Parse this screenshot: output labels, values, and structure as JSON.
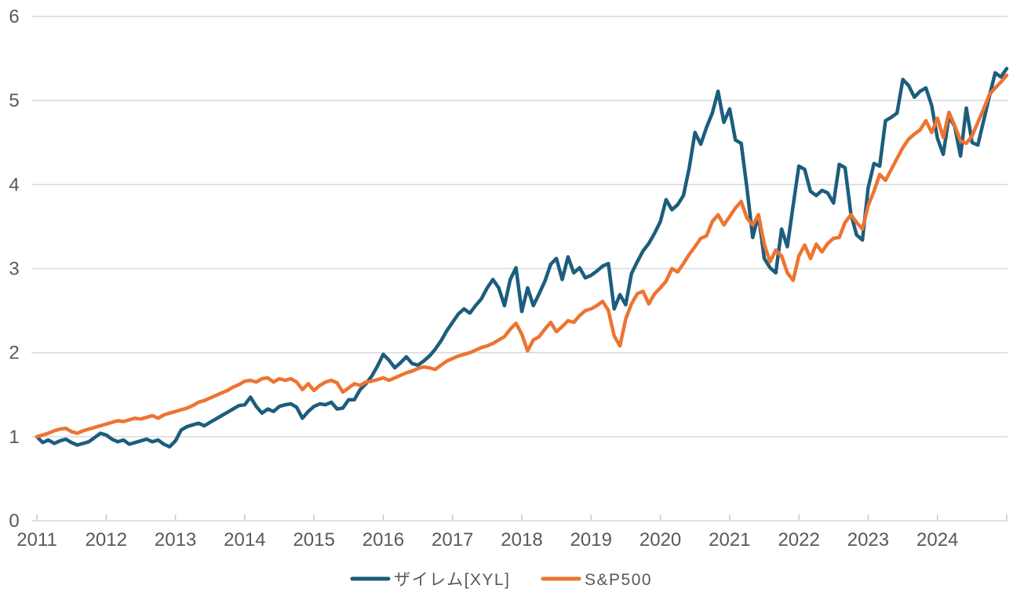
{
  "chart_data": {
    "type": "line",
    "title": "",
    "xlabel": "",
    "ylabel": "",
    "x_tick_labels": [
      "2011",
      "2012",
      "2013",
      "2014",
      "2015",
      "2016",
      "2017",
      "2018",
      "2019",
      "2020",
      "2021",
      "2022",
      "2023",
      "2024"
    ],
    "points_per_year": 12,
    "y_ticks": [
      0,
      1,
      2,
      3,
      4,
      5,
      6
    ],
    "ylim": [
      0,
      6
    ],
    "grid": "horizontal-only",
    "legend_position": "bottom-center",
    "background_color": "#ffffff",
    "gridline_color": "#d9d9d9",
    "tick_color": "#c9c9c9",
    "axis_label_color": "#595959",
    "series": [
      {
        "name": "ザイレム[XYL]",
        "color": "#1c5d7d",
        "values": [
          1.0,
          0.93,
          0.96,
          0.92,
          0.95,
          0.97,
          0.93,
          0.9,
          0.92,
          0.94,
          0.99,
          1.04,
          1.02,
          0.97,
          0.94,
          0.96,
          0.91,
          0.93,
          0.95,
          0.97,
          0.94,
          0.96,
          0.91,
          0.88,
          0.95,
          1.08,
          1.12,
          1.14,
          1.16,
          1.13,
          1.17,
          1.21,
          1.25,
          1.29,
          1.33,
          1.37,
          1.38,
          1.47,
          1.36,
          1.28,
          1.33,
          1.3,
          1.36,
          1.38,
          1.39,
          1.35,
          1.22,
          1.3,
          1.36,
          1.39,
          1.38,
          1.41,
          1.33,
          1.34,
          1.44,
          1.44,
          1.56,
          1.63,
          1.72,
          1.84,
          1.98,
          1.91,
          1.82,
          1.88,
          1.95,
          1.87,
          1.85,
          1.9,
          1.96,
          2.04,
          2.14,
          2.26,
          2.36,
          2.46,
          2.52,
          2.47,
          2.56,
          2.64,
          2.77,
          2.87,
          2.77,
          2.56,
          2.87,
          3.01,
          2.49,
          2.77,
          2.56,
          2.7,
          2.85,
          3.05,
          3.12,
          2.87,
          3.14,
          2.95,
          3.01,
          2.89,
          2.92,
          2.97,
          3.03,
          3.06,
          2.52,
          2.69,
          2.57,
          2.94,
          3.08,
          3.21,
          3.3,
          3.42,
          3.56,
          3.82,
          3.7,
          3.76,
          3.87,
          4.2,
          4.62,
          4.48,
          4.68,
          4.85,
          5.11,
          4.74,
          4.9,
          4.53,
          4.49,
          3.96,
          3.37,
          3.64,
          3.12,
          3.01,
          2.95,
          3.47,
          3.26,
          3.75,
          4.22,
          4.18,
          3.92,
          3.87,
          3.93,
          3.9,
          3.78,
          4.24,
          4.2,
          3.65,
          3.4,
          3.34,
          3.96,
          4.25,
          4.22,
          4.76,
          4.8,
          4.85,
          5.25,
          5.18,
          5.04,
          5.11,
          5.15,
          4.94,
          4.55,
          4.36,
          4.81,
          4.69,
          4.34,
          4.91,
          4.5,
          4.47,
          4.76,
          5.05,
          5.33,
          5.28,
          5.38
        ]
      },
      {
        "name": "S&P500",
        "color": "#ed7431",
        "values": [
          1.0,
          1.02,
          1.04,
          1.07,
          1.09,
          1.1,
          1.06,
          1.04,
          1.07,
          1.09,
          1.11,
          1.13,
          1.15,
          1.17,
          1.19,
          1.18,
          1.2,
          1.22,
          1.21,
          1.23,
          1.25,
          1.22,
          1.26,
          1.28,
          1.3,
          1.32,
          1.34,
          1.37,
          1.41,
          1.43,
          1.46,
          1.49,
          1.52,
          1.55,
          1.59,
          1.62,
          1.66,
          1.67,
          1.65,
          1.69,
          1.7,
          1.65,
          1.69,
          1.67,
          1.69,
          1.65,
          1.56,
          1.63,
          1.55,
          1.61,
          1.65,
          1.67,
          1.64,
          1.53,
          1.58,
          1.63,
          1.61,
          1.65,
          1.66,
          1.68,
          1.7,
          1.67,
          1.7,
          1.73,
          1.76,
          1.78,
          1.81,
          1.83,
          1.82,
          1.8,
          1.85,
          1.9,
          1.93,
          1.96,
          1.98,
          2.0,
          2.03,
          2.06,
          2.08,
          2.11,
          2.15,
          2.19,
          2.28,
          2.35,
          2.22,
          2.02,
          2.15,
          2.19,
          2.28,
          2.36,
          2.25,
          2.31,
          2.38,
          2.36,
          2.44,
          2.5,
          2.52,
          2.56,
          2.61,
          2.5,
          2.2,
          2.08,
          2.4,
          2.58,
          2.7,
          2.73,
          2.58,
          2.7,
          2.77,
          2.85,
          3.0,
          2.96,
          3.06,
          3.17,
          3.26,
          3.36,
          3.39,
          3.56,
          3.64,
          3.52,
          3.62,
          3.72,
          3.8,
          3.6,
          3.52,
          3.64,
          3.29,
          3.08,
          3.22,
          3.15,
          2.95,
          2.86,
          3.15,
          3.28,
          3.12,
          3.29,
          3.2,
          3.3,
          3.36,
          3.37,
          3.55,
          3.64,
          3.55,
          3.47,
          3.75,
          3.92,
          4.12,
          4.05,
          4.18,
          4.31,
          4.44,
          4.54,
          4.6,
          4.65,
          4.76,
          4.62,
          4.79,
          4.56,
          4.86,
          4.7,
          4.52,
          4.49,
          4.58,
          4.74,
          4.9,
          5.07,
          5.15,
          5.22,
          5.3
        ]
      }
    ]
  },
  "legend": {
    "xylem_label": "ザイレム[XYL]",
    "sp500_label": "S&P500"
  }
}
